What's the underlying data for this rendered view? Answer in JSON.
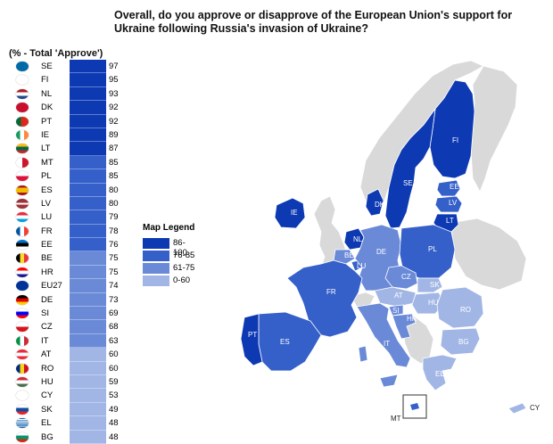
{
  "title": "Overall, do you approve or disapprove of the European Union's support for Ukraine following Russia's invasion of Ukraine?",
  "subtitle": "(% - Total 'Approve')",
  "colors": {
    "c86_100": "#0d39b3",
    "c76_85": "#3560c9",
    "c61_75": "#6a8ad8",
    "c0_60": "#a2b6e6"
  },
  "rows": [
    {
      "code": "SE",
      "value": "97",
      "flag": "se"
    },
    {
      "code": "FI",
      "value": "95",
      "flag": "fi"
    },
    {
      "code": "NL",
      "value": "93",
      "flag": "nl"
    },
    {
      "code": "DK",
      "value": "92",
      "flag": "dk"
    },
    {
      "code": "PT",
      "value": "92",
      "flag": "pt"
    },
    {
      "code": "IE",
      "value": "89",
      "flag": "ie"
    },
    {
      "code": "LT",
      "value": "87",
      "flag": "lt"
    },
    {
      "code": "MT",
      "value": "85",
      "flag": "mt"
    },
    {
      "code": "PL",
      "value": "85",
      "flag": "pl"
    },
    {
      "code": "ES",
      "value": "80",
      "flag": "es"
    },
    {
      "code": "LV",
      "value": "80",
      "flag": "lv"
    },
    {
      "code": "LU",
      "value": "79",
      "flag": "lu"
    },
    {
      "code": "FR",
      "value": "78",
      "flag": "fr"
    },
    {
      "code": "EE",
      "value": "76",
      "flag": "ee"
    },
    {
      "code": "BE",
      "value": "75",
      "flag": "be"
    },
    {
      "code": "HR",
      "value": "75",
      "flag": "hr"
    },
    {
      "code": "EU27",
      "value": "74",
      "flag": "eu"
    },
    {
      "code": "DE",
      "value": "73",
      "flag": "de"
    },
    {
      "code": "SI",
      "value": "69",
      "flag": "si"
    },
    {
      "code": "CZ",
      "value": "68",
      "flag": "cz"
    },
    {
      "code": "IT",
      "value": "63",
      "flag": "it"
    },
    {
      "code": "AT",
      "value": "60",
      "flag": "at"
    },
    {
      "code": "RO",
      "value": "60",
      "flag": "ro"
    },
    {
      "code": "HU",
      "value": "59",
      "flag": "hu"
    },
    {
      "code": "CY",
      "value": "53",
      "flag": "cy"
    },
    {
      "code": "SK",
      "value": "49",
      "flag": "sk"
    },
    {
      "code": "EL",
      "value": "48",
      "flag": "el"
    },
    {
      "code": "BG",
      "value": "48",
      "flag": "bg"
    }
  ],
  "legend": {
    "title": "Map Legend",
    "items": [
      {
        "label": "86-100",
        "color": "#0d39b3"
      },
      {
        "label": "76-85",
        "color": "#3560c9"
      },
      {
        "label": "61-75",
        "color": "#6a8ad8"
      },
      {
        "label": "0-60",
        "color": "#a2b6e6"
      }
    ]
  },
  "map": {
    "labels": [
      "FI",
      "SE",
      "EE",
      "LV",
      "LT",
      "IE",
      "DK",
      "NL",
      "BE",
      "LU",
      "DE",
      "PL",
      "CZ",
      "SK",
      "AT",
      "HU",
      "SI",
      "HR",
      "RO",
      "FR",
      "PT",
      "ES",
      "IT",
      "BG",
      "EL",
      "MT",
      "CY"
    ]
  }
}
